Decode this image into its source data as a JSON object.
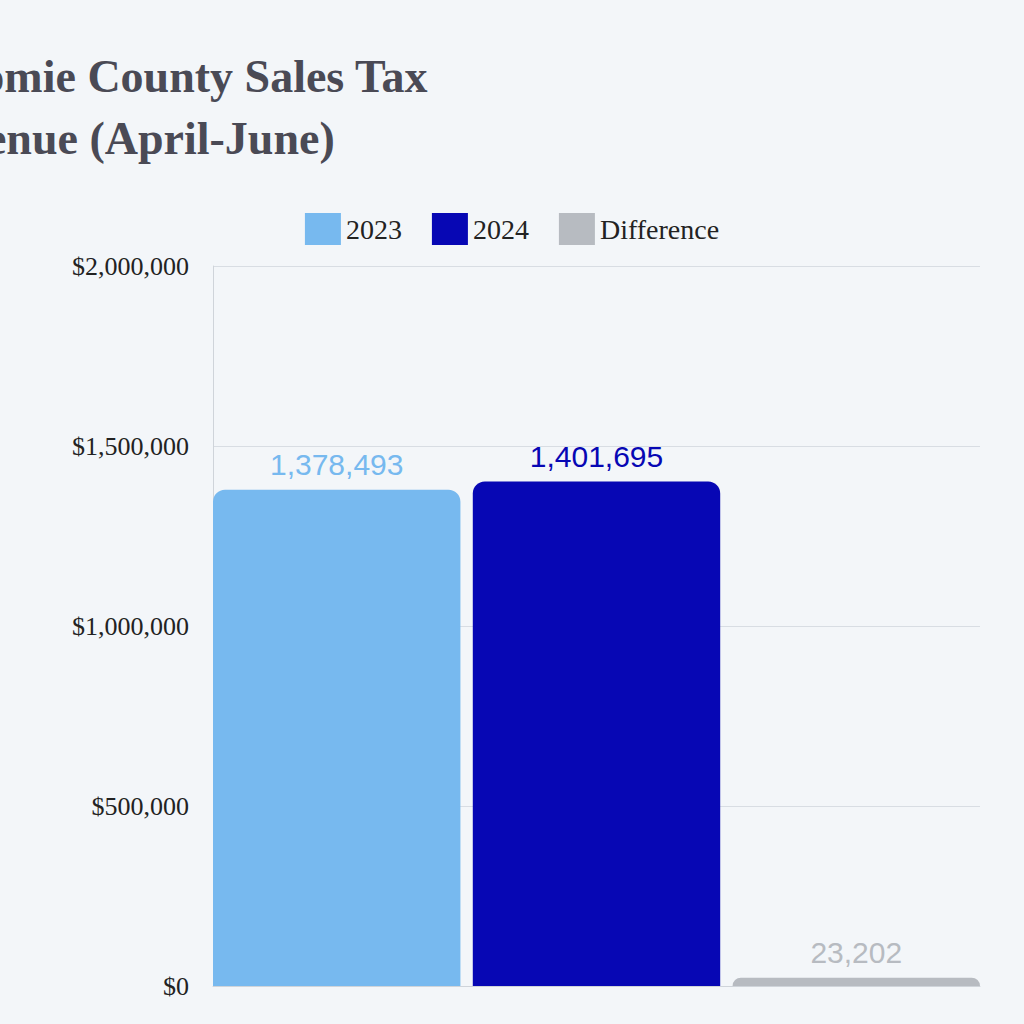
{
  "chart_data": {
    "type": "bar",
    "title": "Pottawatomie County Sales Tax Revenue (April-June)",
    "categories": [
      null
    ],
    "series": [
      {
        "name": "2023",
        "color": "#77b9ef",
        "values": [
          1378493
        ],
        "value_labels": [
          "1,378,493"
        ]
      },
      {
        "name": "2024",
        "color": "#0707b4",
        "values": [
          1401695
        ],
        "value_labels": [
          "1,401,695"
        ]
      },
      {
        "name": "Difference",
        "color": "#b7bbc1",
        "values": [
          23202
        ],
        "value_labels": [
          "23,202"
        ]
      }
    ],
    "ylim": [
      0,
      2000000
    ],
    "yticks": [
      {
        "value": 0,
        "label": "$0"
      },
      {
        "value": 500000,
        "label": "$500,000"
      },
      {
        "value": 1000000,
        "label": "$1,000,000"
      },
      {
        "value": 1500000,
        "label": "$1,500,000"
      },
      {
        "value": 2000000,
        "label": "$2,000,000"
      }
    ],
    "grid": true,
    "legend": "top",
    "data_labels": true
  }
}
